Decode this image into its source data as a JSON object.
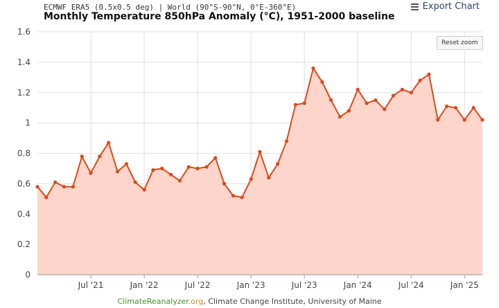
{
  "header": {
    "subtitle": "ECMWF ERA5 (0.5x0.5 deg) | World (90°S-90°N, 0°E-360°E)",
    "title": "Monthly Temperature 850hPa Anomaly (°C), 1951-2000 baseline"
  },
  "toolbar": {
    "export_label": "Export Chart",
    "export_icon": "hamburger-menu-icon",
    "reset_label": "Reset zoom"
  },
  "credits": {
    "site_name": "ClimateReanalyzer",
    "site_tld": ".org",
    "rest": ", Climate Change Institute, University of Maine"
  },
  "chart_data": {
    "type": "area",
    "x_axis": {
      "type": "date",
      "range": [
        "2021-01",
        "2025-03"
      ],
      "tick_labels": [
        {
          "date": "2021-07",
          "label": "Jul '21"
        },
        {
          "date": "2022-01",
          "label": "Jan '22"
        },
        {
          "date": "2022-07",
          "label": "Jul '22"
        },
        {
          "date": "2023-01",
          "label": "Jan '23"
        },
        {
          "date": "2023-07",
          "label": "Jul '23"
        },
        {
          "date": "2024-01",
          "label": "Jan '24"
        },
        {
          "date": "2024-07",
          "label": "Jul '24"
        },
        {
          "date": "2025-01",
          "label": "Jan '25"
        }
      ]
    },
    "y_axis": {
      "ylim": [
        0,
        1.6
      ],
      "ticks": [
        0,
        0.2,
        0.4,
        0.6,
        0.8,
        1,
        1.2,
        1.4,
        1.6
      ],
      "tick_labels": [
        "0",
        "0.2",
        "0.4",
        "0.6",
        "0.8",
        "1",
        "1.2",
        "1.4",
        "1.6"
      ]
    },
    "grid": true,
    "legend": "none",
    "colors": {
      "line": "#d84a1b",
      "fill": "#fdd5ca",
      "grid": "#e0e0e0"
    },
    "series": [
      {
        "x": [
          "2021-01",
          "2021-02",
          "2021-03",
          "2021-04",
          "2021-05",
          "2021-06",
          "2021-07",
          "2021-08",
          "2021-09",
          "2021-10",
          "2021-11",
          "2021-12",
          "2022-01",
          "2022-02",
          "2022-03",
          "2022-04",
          "2022-05",
          "2022-06",
          "2022-07",
          "2022-08",
          "2022-09",
          "2022-10",
          "2022-11",
          "2022-12",
          "2023-01",
          "2023-02",
          "2023-03",
          "2023-04",
          "2023-05",
          "2023-06",
          "2023-07",
          "2023-08",
          "2023-09",
          "2023-10",
          "2023-11",
          "2023-12",
          "2024-01",
          "2024-02",
          "2024-03",
          "2024-04",
          "2024-05",
          "2024-06",
          "2024-07",
          "2024-08",
          "2024-09",
          "2024-10",
          "2024-11",
          "2024-12",
          "2025-01",
          "2025-02",
          "2025-03"
        ],
        "values": [
          0.58,
          0.51,
          0.61,
          0.58,
          0.58,
          0.78,
          0.67,
          0.78,
          0.87,
          0.68,
          0.73,
          0.61,
          0.56,
          0.69,
          0.7,
          0.66,
          0.62,
          0.71,
          0.7,
          0.71,
          0.77,
          0.6,
          0.52,
          0.51,
          0.63,
          0.81,
          0.64,
          0.73,
          0.88,
          1.12,
          1.13,
          1.36,
          1.27,
          1.15,
          1.04,
          1.08,
          1.22,
          1.13,
          1.15,
          1.09,
          1.18,
          1.22,
          1.2,
          1.28,
          1.32,
          1.02,
          1.11,
          1.1,
          1.02,
          1.1,
          1.02
        ]
      }
    ]
  }
}
